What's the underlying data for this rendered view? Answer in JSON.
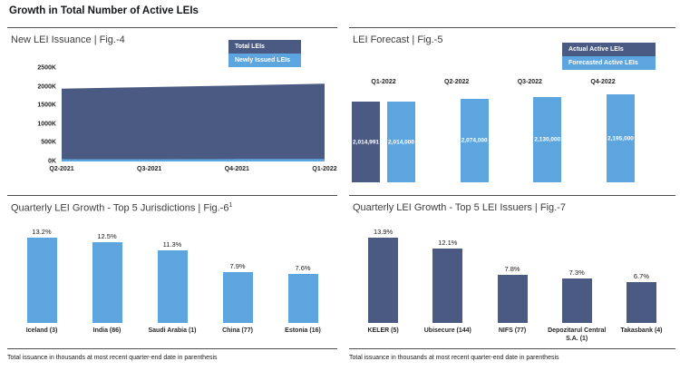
{
  "page_title": "Growth in Total Number of Active LEIs",
  "footnote": "Total issuance in thousands at most recent quarter-end date in parenthesis",
  "colors": {
    "dark_blue": "#4A5A82",
    "light_blue": "#5CA5DE"
  },
  "panels": {
    "fig4": {
      "title": "New LEI Issuance | Fig.-4"
    },
    "fig5": {
      "title": "LEI Forecast | Fig.-5"
    },
    "fig6": {
      "title": "Quarterly LEI Growth - Top 5 Jurisdictions | Fig.-6",
      "title_sup": "1"
    },
    "fig7": {
      "title": "Quarterly LEI Growth - Top 5 LEI Issuers | Fig.-7"
    }
  },
  "chart_data": [
    {
      "id": "fig-4",
      "type": "area",
      "title": "New LEI Issuance",
      "stacked": true,
      "grid": false,
      "legend_position": "top-right",
      "x": [
        "Q2-2021",
        "Q3-2021",
        "Q4-2021",
        "Q1-2022"
      ],
      "series": [
        {
          "name": "Total LEIs",
          "color": "#4A5A82",
          "values": [
            1890000,
            1930000,
            1970000,
            2015000
          ]
        },
        {
          "name": "Newly Issued LEIs",
          "color": "#5CA5DE",
          "values": [
            60000,
            60000,
            65000,
            65000
          ]
        }
      ],
      "ylim": [
        0,
        2500000
      ],
      "yticks": [
        "2500K",
        "2000K",
        "1500K",
        "1000K",
        "500K",
        "0K"
      ]
    },
    {
      "id": "fig-5",
      "type": "bar",
      "title": "LEI Forecast",
      "grid": false,
      "legend_position": "top-right",
      "category_labels_position": "top",
      "categories": [
        "Q1-2022",
        "Q2-2022",
        "Q3-2022",
        "Q4-2022"
      ],
      "series": [
        {
          "name": "Actual Active LEIs",
          "color": "#4A5A82",
          "values": [
            2014991,
            null,
            null,
            null
          ],
          "labels": [
            "2,014,991",
            null,
            null,
            null
          ]
        },
        {
          "name": "Forecasted Active LEIs",
          "color": "#5CA5DE",
          "values": [
            2014000,
            2074000,
            2130000,
            2195000
          ],
          "labels": [
            "2,014,000",
            "2,074,000",
            "2,130,000",
            "2,195,000"
          ]
        }
      ],
      "ylim": [
        0,
        2195000
      ]
    },
    {
      "id": "fig-6",
      "type": "bar",
      "title": "Quarterly LEI Growth - Top 5 Jurisdictions",
      "grid": false,
      "color": "#5CA5DE",
      "categories": [
        "Iceland (3)",
        "India (86)",
        "Saudi Arabia (1)",
        "China (77)",
        "Estonia (16)"
      ],
      "values": [
        13.2,
        12.5,
        11.3,
        7.9,
        7.6
      ],
      "labels": [
        "13.2%",
        "12.5%",
        "11.3%",
        "7.9%",
        "7.6%"
      ],
      "ylim": [
        0,
        14
      ]
    },
    {
      "id": "fig-7",
      "type": "bar",
      "title": "Quarterly LEI Growth - Top 5 LEI Issuers",
      "grid": false,
      "color": "#4A5A82",
      "categories": [
        "KELER (5)",
        "Ubisecure (144)",
        "NIFS (77)",
        "Depozitarul Central S.A. (1)",
        "Takasbank (4)"
      ],
      "values": [
        13.9,
        12.1,
        7.8,
        7.3,
        6.7
      ],
      "labels": [
        "13.9%",
        "12.1%",
        "7.8%",
        "7.3%",
        "6.7%"
      ],
      "ylim": [
        0,
        14
      ]
    }
  ]
}
